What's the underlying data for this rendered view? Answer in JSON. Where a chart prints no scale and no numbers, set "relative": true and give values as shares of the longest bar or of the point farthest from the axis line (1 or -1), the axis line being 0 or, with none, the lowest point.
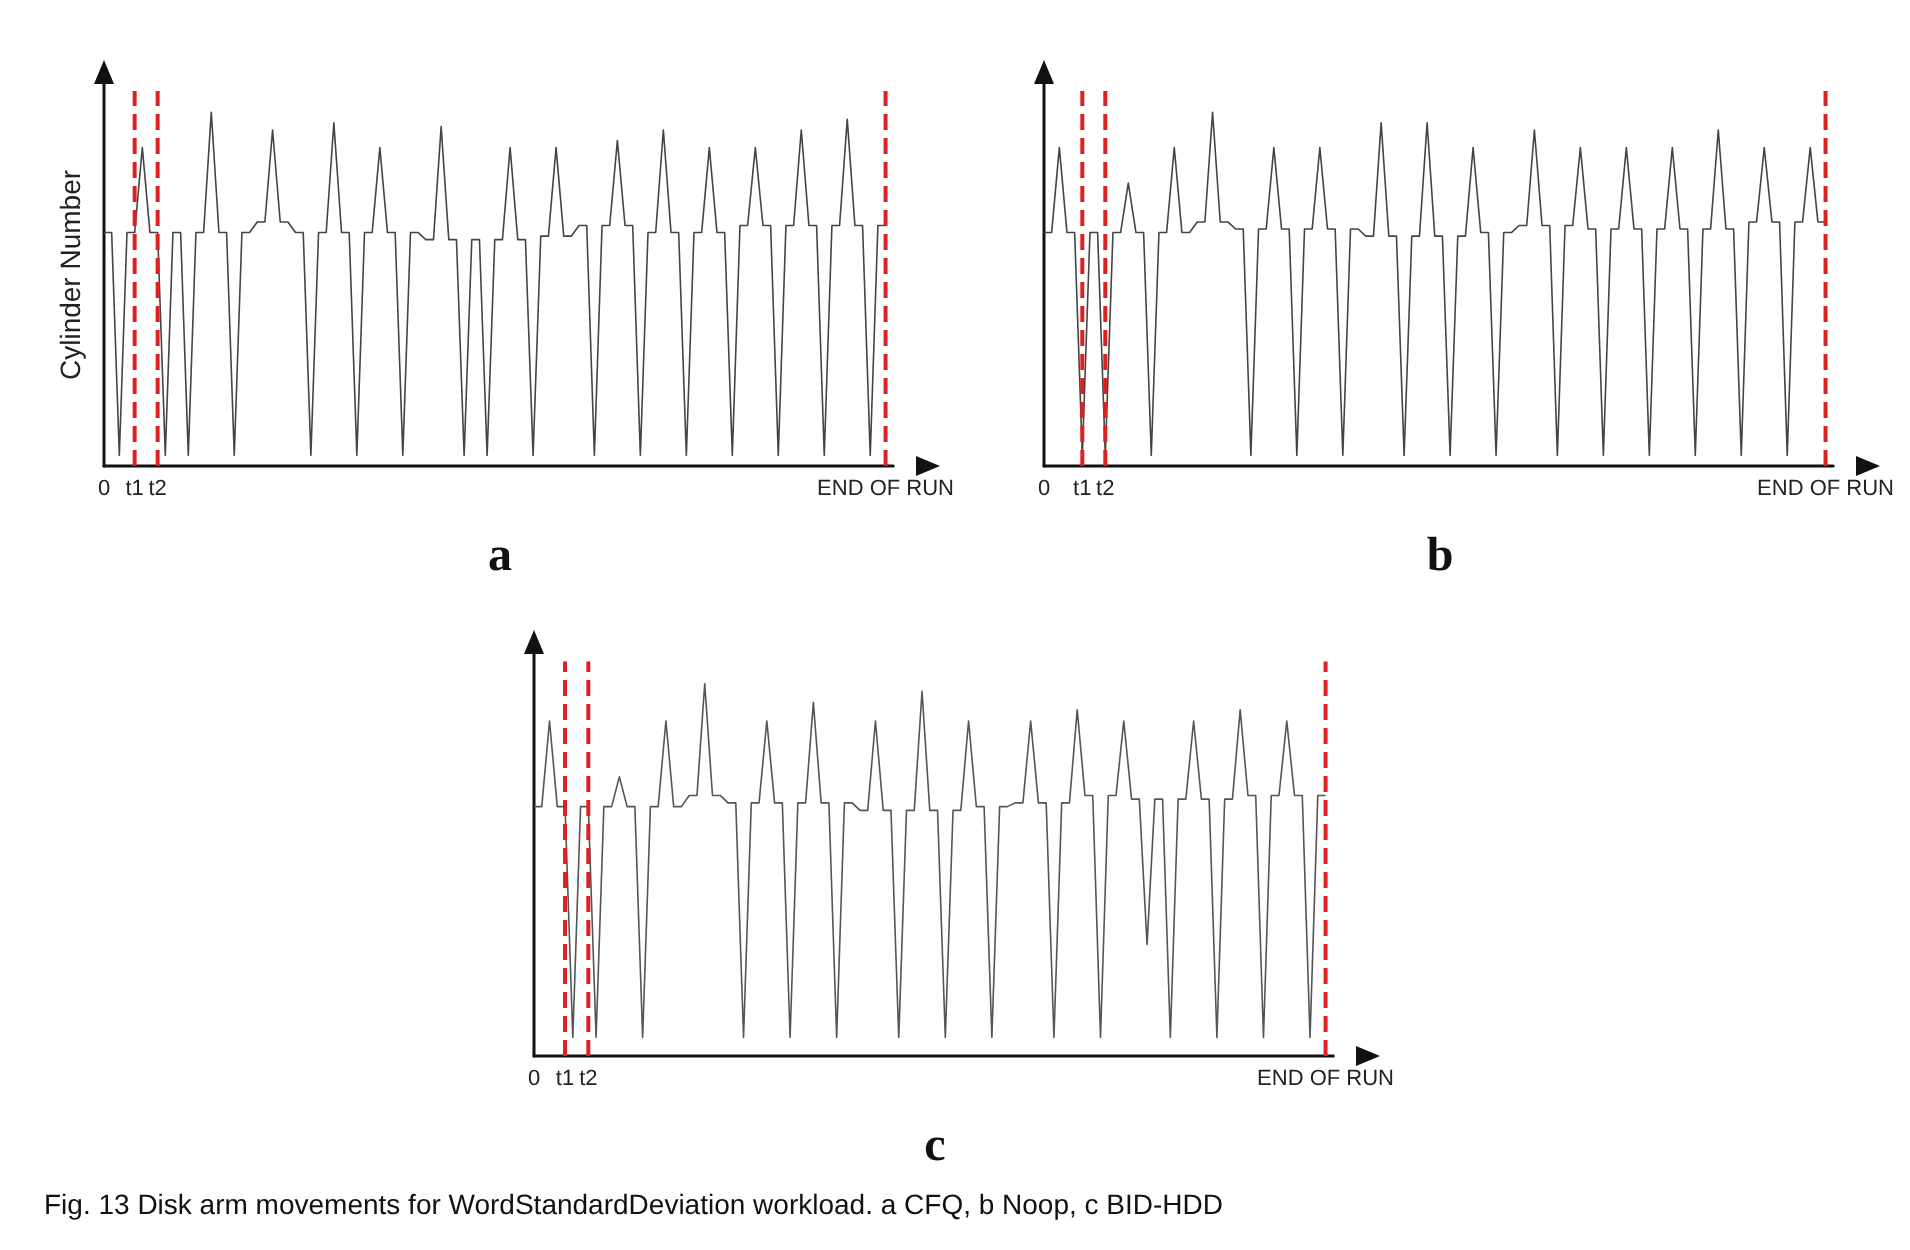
{
  "chart_data": [
    {
      "type": "line",
      "title": "a",
      "ylabel": "Cylinder Number",
      "relative": true,
      "grid": false,
      "marker": "none",
      "line_style": "solid",
      "categories": [
        "0",
        null,
        null,
        null,
        "t1",
        null,
        null,
        "t2",
        null,
        null,
        null,
        null,
        null,
        null,
        null,
        null,
        null,
        null,
        null,
        null,
        null,
        null,
        null,
        null,
        null,
        null,
        null,
        null,
        null,
        null,
        null,
        null,
        null,
        null,
        null,
        null,
        null,
        null,
        null,
        null,
        null,
        null,
        null,
        null,
        null,
        null,
        null,
        null,
        null,
        null,
        null,
        null,
        null,
        null,
        null,
        null,
        null,
        null,
        null,
        null,
        null,
        null,
        null,
        null,
        null,
        null,
        null,
        null,
        null,
        null,
        null,
        null,
        null,
        null,
        null,
        null,
        null,
        null,
        null,
        null,
        null,
        null,
        null,
        null,
        null,
        null,
        null,
        null,
        null,
        null,
        null,
        null,
        null,
        null,
        null,
        null,
        null,
        null,
        null,
        null,
        null,
        null,
        "END OF RUN",
        null
      ],
      "ref_lines": [
        {
          "axis": "x",
          "value": "t1",
          "color": "#e02020",
          "line_style": "dashed"
        },
        {
          "axis": "x",
          "value": "t2",
          "color": "#e02020",
          "line_style": "dashed"
        },
        {
          "axis": "x",
          "value": "END OF RUN",
          "color": "#e02020",
          "line_style": "dashed"
        }
      ],
      "series": [
        {
          "color": "#444444",
          "values": [
            0.66,
            0.66,
            0.03,
            0.66,
            0.66,
            0.9,
            0.66,
            0.66,
            0.03,
            0.66,
            0.66,
            0.03,
            0.66,
            0.66,
            1,
            0.66,
            0.66,
            0.03,
            0.66,
            0.66,
            0.69,
            0.69,
            0.95,
            0.69,
            0.69,
            0.66,
            0.66,
            0.03,
            0.66,
            0.66,
            0.97,
            0.66,
            0.66,
            0.03,
            0.66,
            0.66,
            0.9,
            0.66,
            0.66,
            0.03,
            0.66,
            0.66,
            0.64,
            0.64,
            0.96,
            0.64,
            0.64,
            0.03,
            0.64,
            0.64,
            0.03,
            0.64,
            0.64,
            0.9,
            0.64,
            0.64,
            0.03,
            0.65,
            0.65,
            0.9,
            0.65,
            0.65,
            0.68,
            0.68,
            0.03,
            0.68,
            0.68,
            0.92,
            0.68,
            0.68,
            0.03,
            0.66,
            0.66,
            0.95,
            0.66,
            0.66,
            0.03,
            0.66,
            0.66,
            0.9,
            0.66,
            0.66,
            0.03,
            0.68,
            0.68,
            0.9,
            0.68,
            0.68,
            0.03,
            0.68,
            0.68,
            0.95,
            0.68,
            0.68,
            0.03,
            0.68,
            0.68,
            0.98,
            0.68,
            0.68,
            0.03,
            0.68,
            0.68,
            null
          ]
        }
      ]
    },
    {
      "type": "line",
      "title": "b",
      "relative": true,
      "grid": false,
      "marker": "none",
      "line_style": "solid",
      "categories": [
        "0",
        null,
        null,
        null,
        null,
        "t1",
        null,
        null,
        "t2",
        null,
        null,
        null,
        null,
        null,
        null,
        null,
        null,
        null,
        null,
        null,
        null,
        null,
        null,
        null,
        null,
        null,
        null,
        null,
        null,
        null,
        null,
        null,
        null,
        null,
        null,
        null,
        null,
        null,
        null,
        null,
        null,
        null,
        null,
        null,
        null,
        null,
        null,
        null,
        null,
        null,
        null,
        null,
        null,
        null,
        null,
        null,
        null,
        null,
        null,
        null,
        null,
        null,
        null,
        null,
        null,
        null,
        null,
        null,
        null,
        null,
        null,
        null,
        null,
        null,
        null,
        null,
        null,
        null,
        null,
        null,
        null,
        null,
        null,
        null,
        null,
        null,
        null,
        null,
        null,
        null,
        null,
        null,
        null,
        null,
        null,
        null,
        null,
        null,
        null,
        null,
        null,
        null,
        "END OF RUN",
        null
      ],
      "ref_lines": [
        {
          "axis": "x",
          "value": "t1",
          "color": "#e02020",
          "line_style": "dashed"
        },
        {
          "axis": "x",
          "value": "t2",
          "color": "#e02020",
          "line_style": "dashed"
        },
        {
          "axis": "x",
          "value": "END OF RUN",
          "color": "#e02020",
          "line_style": "dashed"
        }
      ],
      "series": [
        {
          "color": "#444444",
          "values": [
            0.66,
            0.66,
            0.9,
            0.66,
            0.66,
            0.03,
            0.66,
            0.66,
            0.03,
            0.66,
            0.66,
            0.8,
            0.66,
            0.66,
            0.03,
            0.66,
            0.66,
            0.9,
            0.66,
            0.66,
            0.69,
            0.69,
            1,
            0.69,
            0.69,
            0.67,
            0.67,
            0.03,
            0.67,
            0.67,
            0.9,
            0.67,
            0.67,
            0.03,
            0.67,
            0.67,
            0.9,
            0.67,
            0.67,
            0.03,
            0.67,
            0.67,
            0.65,
            0.65,
            0.97,
            0.65,
            0.65,
            0.03,
            0.65,
            0.65,
            0.97,
            0.65,
            0.65,
            0.03,
            0.65,
            0.65,
            0.9,
            0.66,
            0.66,
            0.03,
            0.66,
            0.66,
            0.68,
            0.68,
            0.95,
            0.68,
            0.68,
            0.03,
            0.68,
            0.68,
            0.9,
            0.67,
            0.67,
            0.03,
            0.67,
            0.67,
            0.9,
            0.67,
            0.67,
            0.03,
            0.67,
            0.67,
            0.9,
            0.67,
            0.67,
            0.03,
            0.67,
            0.67,
            0.95,
            0.67,
            0.67,
            0.03,
            0.69,
            0.69,
            0.9,
            0.69,
            0.69,
            0.03,
            0.69,
            0.69,
            0.9,
            0.69,
            0.69,
            null
          ]
        }
      ]
    },
    {
      "type": "line",
      "title": "c",
      "relative": true,
      "grid": false,
      "marker": "none",
      "line_style": "solid",
      "categories": [
        "0",
        null,
        null,
        null,
        "t1",
        null,
        null,
        "t2",
        null,
        null,
        null,
        null,
        null,
        null,
        null,
        null,
        null,
        null,
        null,
        null,
        null,
        null,
        null,
        null,
        null,
        null,
        null,
        null,
        null,
        null,
        null,
        null,
        null,
        null,
        null,
        null,
        null,
        null,
        null,
        null,
        null,
        null,
        null,
        null,
        null,
        null,
        null,
        null,
        null,
        null,
        null,
        null,
        null,
        null,
        null,
        null,
        null,
        null,
        null,
        null,
        null,
        null,
        null,
        null,
        null,
        null,
        null,
        null,
        null,
        null,
        null,
        null,
        null,
        null,
        null,
        null,
        null,
        null,
        null,
        null,
        null,
        null,
        null,
        null,
        null,
        null,
        null,
        null,
        null,
        null,
        null,
        null,
        null,
        null,
        null,
        null,
        null,
        null,
        null,
        null,
        null,
        null,
        "END OF RUN",
        null
      ],
      "ref_lines": [
        {
          "axis": "x",
          "value": "t1",
          "color": "#e02020",
          "line_style": "dashed"
        },
        {
          "axis": "x",
          "value": "t2",
          "color": "#e02020",
          "line_style": "dashed"
        },
        {
          "axis": "x",
          "value": "END OF RUN",
          "color": "#e02020",
          "line_style": "dashed"
        }
      ],
      "annotations": [
        "Fig. 13  Disk arm movements for WordStandardDeviation workload. a CFQ, b Noop, c BID-HDD"
      ],
      "series": [
        {
          "color": "#555555",
          "values": [
            0.67,
            0.67,
            0.9,
            0.67,
            0.67,
            0.05,
            0.67,
            0.67,
            0.05,
            0.67,
            0.67,
            0.75,
            0.67,
            0.67,
            0.05,
            0.67,
            0.67,
            0.9,
            0.67,
            0.67,
            0.7,
            0.7,
            1,
            0.7,
            0.7,
            0.68,
            0.68,
            0.05,
            0.68,
            0.68,
            0.9,
            0.68,
            0.68,
            0.05,
            0.68,
            0.68,
            0.95,
            0.68,
            0.68,
            0.05,
            0.68,
            0.68,
            0.66,
            0.66,
            0.9,
            0.66,
            0.66,
            0.05,
            0.66,
            0.66,
            0.98,
            0.66,
            0.66,
            0.05,
            0.66,
            0.66,
            0.9,
            0.67,
            0.67,
            0.05,
            0.67,
            0.67,
            0.68,
            0.68,
            0.9,
            0.68,
            0.68,
            0.05,
            0.68,
            0.68,
            0.93,
            0.7,
            0.7,
            0.05,
            0.7,
            0.7,
            0.9,
            0.69,
            0.69,
            0.3,
            0.69,
            0.69,
            0.05,
            0.69,
            0.69,
            0.9,
            0.69,
            0.69,
            0.05,
            0.69,
            0.69,
            0.93,
            0.7,
            0.7,
            0.05,
            0.7,
            0.7,
            0.9,
            0.7,
            0.7,
            0.05,
            0.7,
            0.7,
            null
          ]
        }
      ]
    }
  ]
}
